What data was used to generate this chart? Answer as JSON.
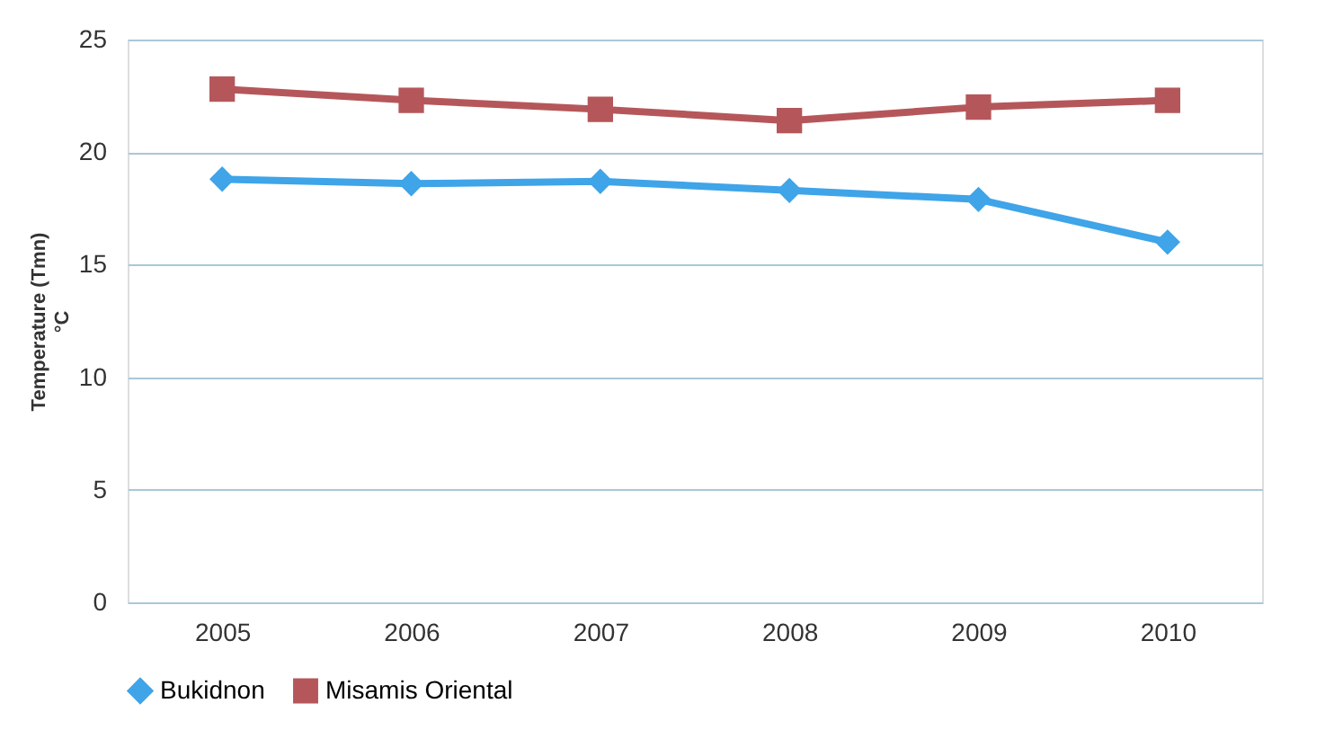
{
  "chart_data": {
    "type": "line",
    "ylabel": "Temperature (Tmn)\n°C",
    "categories": [
      "2005",
      "2006",
      "2007",
      "2008",
      "2009",
      "2010"
    ],
    "series": [
      {
        "name": "Bukidnon",
        "color": "#3fa4e8",
        "marker": "diamond",
        "values": [
          18.8,
          18.6,
          18.7,
          18.3,
          17.9,
          16.0
        ]
      },
      {
        "name": "Misamis Oriental",
        "color": "#b5575a",
        "marker": "square",
        "values": [
          22.8,
          22.3,
          21.9,
          21.4,
          22.0,
          22.3
        ]
      }
    ],
    "ylim": [
      0,
      25
    ],
    "yticks": [
      0,
      5,
      10,
      15,
      20,
      25
    ],
    "grid": "y",
    "legend": "bottom",
    "line_style": "solid"
  }
}
